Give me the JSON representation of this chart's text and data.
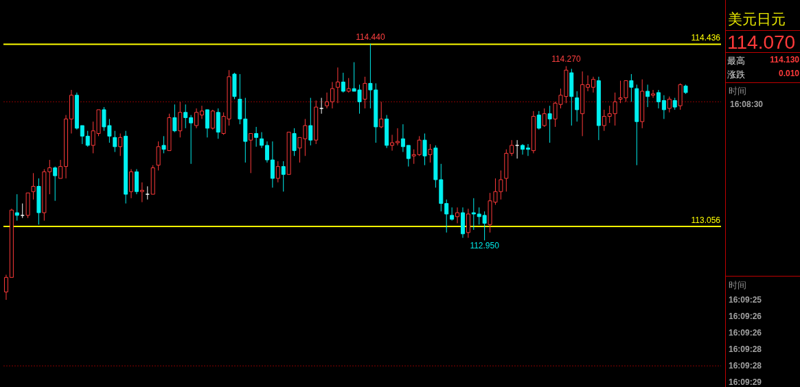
{
  "chart_data": {
    "type": "candlestick",
    "title": "美元日元",
    "categories": [
      null,
      null,
      null,
      null,
      null,
      null,
      null,
      null,
      null,
      null,
      null,
      null,
      null,
      null,
      null,
      null,
      null,
      null,
      null,
      null,
      null,
      null,
      null,
      null,
      null,
      null,
      null,
      null,
      null,
      null,
      null,
      null,
      null,
      null,
      null,
      null,
      null,
      null,
      null,
      null,
      null,
      null,
      null,
      null,
      null,
      null,
      null,
      null,
      null,
      null,
      null,
      null,
      null,
      null,
      null,
      null,
      null,
      null,
      null,
      null,
      null,
      null,
      null,
      null,
      null,
      null,
      null,
      null,
      null,
      null,
      null,
      null,
      null,
      null,
      null,
      null,
      null,
      null,
      null,
      null,
      null,
      null,
      null,
      null,
      null,
      null,
      null,
      null,
      null,
      null,
      null,
      null,
      null,
      null,
      null,
      null,
      null,
      null,
      null,
      null,
      null,
      null,
      null,
      null,
      null,
      null,
      null,
      null,
      null,
      null,
      null,
      null,
      null,
      null,
      null,
      null,
      null,
      null,
      null,
      null,
      null,
      null,
      null,
      null,
      null,
      null
    ],
    "ohlc": [
      [
        112.56,
        112.69,
        112.5,
        112.67
      ],
      [
        112.67,
        113.19,
        112.67,
        113.18
      ],
      [
        113.16,
        113.3,
        113.1,
        113.14
      ],
      [
        113.14,
        113.23,
        113.12,
        113.14
      ],
      [
        113.14,
        113.31,
        113.12,
        113.31
      ],
      [
        113.32,
        113.46,
        113.26,
        113.36
      ],
      [
        113.36,
        113.42,
        113.07,
        113.16
      ],
      [
        113.16,
        113.49,
        113.1,
        113.47
      ],
      [
        113.47,
        113.56,
        113.3,
        113.5
      ],
      [
        113.5,
        113.51,
        113.25,
        113.44
      ],
      [
        113.42,
        113.56,
        113.42,
        113.51
      ],
      [
        113.51,
        113.9,
        113.42,
        113.87
      ],
      [
        113.87,
        114.09,
        113.76,
        114.05
      ],
      [
        114.05,
        114.07,
        113.79,
        113.8
      ],
      [
        113.82,
        113.82,
        113.68,
        113.74
      ],
      [
        113.74,
        113.78,
        113.66,
        113.67
      ],
      [
        113.67,
        113.85,
        113.61,
        113.78
      ],
      [
        113.76,
        113.94,
        113.74,
        113.94
      ],
      [
        113.94,
        113.96,
        113.78,
        113.81
      ],
      [
        113.82,
        113.87,
        113.69,
        113.74
      ],
      [
        113.73,
        113.78,
        113.62,
        113.66
      ],
      [
        113.66,
        113.76,
        113.59,
        113.73
      ],
      [
        113.74,
        113.78,
        113.23,
        113.3
      ],
      [
        113.32,
        113.49,
        113.27,
        113.47
      ],
      [
        113.47,
        113.49,
        113.3,
        113.32
      ],
      [
        113.32,
        113.39,
        113.24,
        113.33
      ],
      [
        113.3,
        113.36,
        113.26,
        113.3
      ],
      [
        113.3,
        113.52,
        113.3,
        113.5
      ],
      [
        113.52,
        113.7,
        113.48,
        113.66
      ],
      [
        113.67,
        113.74,
        113.61,
        113.64
      ],
      [
        113.63,
        113.91,
        113.63,
        113.88
      ],
      [
        113.88,
        113.98,
        113.77,
        113.78
      ],
      [
        113.78,
        114.0,
        113.73,
        113.92
      ],
      [
        113.92,
        113.98,
        113.8,
        113.88
      ],
      [
        113.88,
        113.9,
        113.53,
        113.84
      ],
      [
        113.82,
        113.95,
        113.8,
        113.92
      ],
      [
        113.9,
        113.97,
        113.87,
        113.93
      ],
      [
        113.94,
        113.94,
        113.73,
        113.8
      ],
      [
        113.8,
        113.94,
        113.79,
        113.93
      ],
      [
        113.92,
        113.95,
        113.72,
        113.77
      ],
      [
        113.76,
        113.92,
        113.75,
        113.89
      ],
      [
        113.87,
        114.24,
        113.82,
        114.19
      ],
      [
        114.21,
        114.22,
        114.02,
        114.04
      ],
      [
        114.02,
        114.21,
        113.83,
        113.87
      ],
      [
        113.87,
        114.03,
        113.54,
        113.7
      ],
      [
        113.71,
        113.76,
        113.46,
        113.76
      ],
      [
        113.76,
        113.81,
        113.66,
        113.73
      ],
      [
        113.72,
        113.77,
        113.65,
        113.67
      ],
      [
        113.67,
        113.7,
        113.54,
        113.56
      ],
      [
        113.56,
        113.7,
        113.35,
        113.42
      ],
      [
        113.42,
        113.55,
        113.39,
        113.51
      ],
      [
        113.51,
        113.55,
        113.32,
        113.45
      ],
      [
        113.45,
        113.77,
        113.45,
        113.77
      ],
      [
        113.76,
        113.8,
        113.59,
        113.63
      ],
      [
        113.65,
        113.73,
        113.54,
        113.73
      ],
      [
        113.72,
        113.87,
        113.59,
        113.82
      ],
      [
        113.82,
        114.03,
        113.67,
        113.71
      ],
      [
        113.71,
        114.01,
        113.68,
        113.96
      ],
      [
        113.95,
        114.03,
        113.91,
        113.95
      ],
      [
        113.97,
        114.07,
        113.95,
        114.0
      ],
      [
        114.0,
        114.15,
        113.95,
        114.1
      ],
      [
        114.11,
        114.26,
        113.99,
        114.15
      ],
      [
        114.15,
        114.22,
        114.07,
        114.08
      ],
      [
        114.08,
        114.18,
        114.07,
        114.1
      ],
      [
        114.1,
        114.3,
        114.08,
        114.08
      ],
      [
        114.09,
        114.13,
        113.91,
        114.0
      ],
      [
        114.02,
        114.19,
        113.95,
        114.14
      ],
      [
        114.14,
        114.44,
        113.95,
        114.09
      ],
      [
        114.09,
        114.14,
        113.69,
        113.81
      ],
      [
        113.81,
        114.0,
        113.8,
        113.87
      ],
      [
        113.87,
        113.9,
        113.65,
        113.67
      ],
      [
        113.67,
        113.75,
        113.63,
        113.69
      ],
      [
        113.69,
        113.8,
        113.67,
        113.7
      ],
      [
        113.72,
        113.83,
        113.62,
        113.66
      ],
      [
        113.67,
        113.67,
        113.51,
        113.57
      ],
      [
        113.59,
        113.64,
        113.53,
        113.6
      ],
      [
        113.6,
        113.74,
        113.59,
        113.71
      ],
      [
        113.71,
        113.76,
        113.52,
        113.59
      ],
      [
        113.6,
        113.68,
        113.54,
        113.64
      ],
      [
        113.65,
        113.67,
        113.35,
        113.41
      ],
      [
        113.41,
        113.53,
        113.17,
        113.23
      ],
      [
        113.23,
        113.26,
        113.01,
        113.15
      ],
      [
        113.14,
        113.2,
        113.1,
        113.11
      ],
      [
        113.13,
        113.2,
        113.08,
        113.16
      ],
      [
        113.16,
        113.2,
        112.97,
        113.0
      ],
      [
        113.01,
        113.19,
        112.97,
        113.15
      ],
      [
        113.16,
        113.27,
        113.03,
        113.15
      ],
      [
        113.15,
        113.2,
        113.07,
        113.13
      ],
      [
        113.14,
        113.17,
        112.95,
        113.08
      ],
      [
        113.07,
        113.31,
        113.01,
        113.25
      ],
      [
        113.24,
        113.42,
        113.22,
        113.32
      ],
      [
        113.32,
        113.48,
        113.26,
        113.41
      ],
      [
        113.42,
        113.64,
        113.32,
        113.61
      ],
      [
        113.61,
        113.71,
        113.59,
        113.67
      ],
      [
        113.67,
        113.71,
        113.57,
        113.67
      ],
      [
        113.67,
        113.68,
        113.6,
        113.64
      ],
      [
        113.65,
        113.68,
        113.59,
        113.64
      ],
      [
        113.63,
        113.93,
        113.61,
        113.89
      ],
      [
        113.9,
        113.93,
        113.79,
        113.8
      ],
      [
        113.82,
        113.95,
        113.81,
        113.91
      ],
      [
        113.91,
        113.97,
        113.69,
        113.87
      ],
      [
        113.87,
        114.0,
        113.81,
        113.99
      ],
      [
        113.98,
        114.1,
        113.95,
        114.05
      ],
      [
        114.04,
        114.27,
        113.99,
        114.24
      ],
      [
        114.22,
        114.25,
        113.82,
        114.04
      ],
      [
        114.03,
        114.08,
        113.85,
        113.94
      ],
      [
        113.91,
        114.23,
        113.74,
        114.13
      ],
      [
        114.11,
        114.2,
        114.08,
        114.13
      ],
      [
        114.11,
        114.19,
        114.07,
        114.17
      ],
      [
        114.16,
        114.19,
        113.71,
        113.82
      ],
      [
        113.82,
        113.94,
        113.78,
        113.89
      ],
      [
        113.89,
        113.97,
        113.84,
        113.91
      ],
      [
        113.91,
        114.07,
        113.82,
        114.0
      ],
      [
        114.02,
        114.16,
        113.99,
        114.03
      ],
      [
        114.03,
        114.16,
        114.0,
        114.16
      ],
      [
        114.16,
        114.21,
        114.0,
        114.11
      ],
      [
        114.1,
        114.13,
        113.52,
        113.85
      ],
      [
        113.85,
        114.17,
        113.8,
        114.08
      ],
      [
        114.08,
        114.13,
        113.96,
        114.04
      ],
      [
        114.05,
        114.09,
        114.03,
        114.06
      ],
      [
        114.07,
        114.09,
        113.95,
        114.0
      ],
      [
        114.01,
        114.05,
        113.87,
        113.94
      ],
      [
        113.95,
        114.04,
        113.92,
        114.02
      ],
      [
        114.01,
        114.03,
        113.94,
        113.96
      ],
      [
        113.97,
        114.14,
        113.94,
        114.13
      ],
      [
        114.12,
        114.13,
        114.06,
        114.07
      ]
    ],
    "ylim": [
      111.84,
      114.61
    ],
    "tick_labels": false,
    "ref_lines": [
      {
        "axis": "y",
        "value": 114.436,
        "label": "114.436",
        "color": "#ffff00"
      },
      {
        "axis": "y",
        "value": 113.056,
        "label": "113.056",
        "color": "#ffff00"
      },
      {
        "axis": "y",
        "value": 114.0,
        "color": "#8b0000",
        "line_style": "dotted"
      },
      {
        "axis": "y",
        "value": 112.0,
        "color": "#8b0000",
        "line_style": "dotted"
      }
    ],
    "annotations": [
      {
        "text": "114.440",
        "y": 114.44
      },
      {
        "text": "114.270",
        "y": 114.27
      },
      {
        "text": "112.950",
        "y": 112.95
      },
      "114.070",
      "最高",
      "114.130",
      "涨跌",
      "0.010",
      "时间",
      "16:08:30",
      "时间",
      "16:09:25",
      "16:09:26",
      "16:09:26",
      "16:09:28",
      "16:09:28",
      "16:09:29"
    ]
  }
}
